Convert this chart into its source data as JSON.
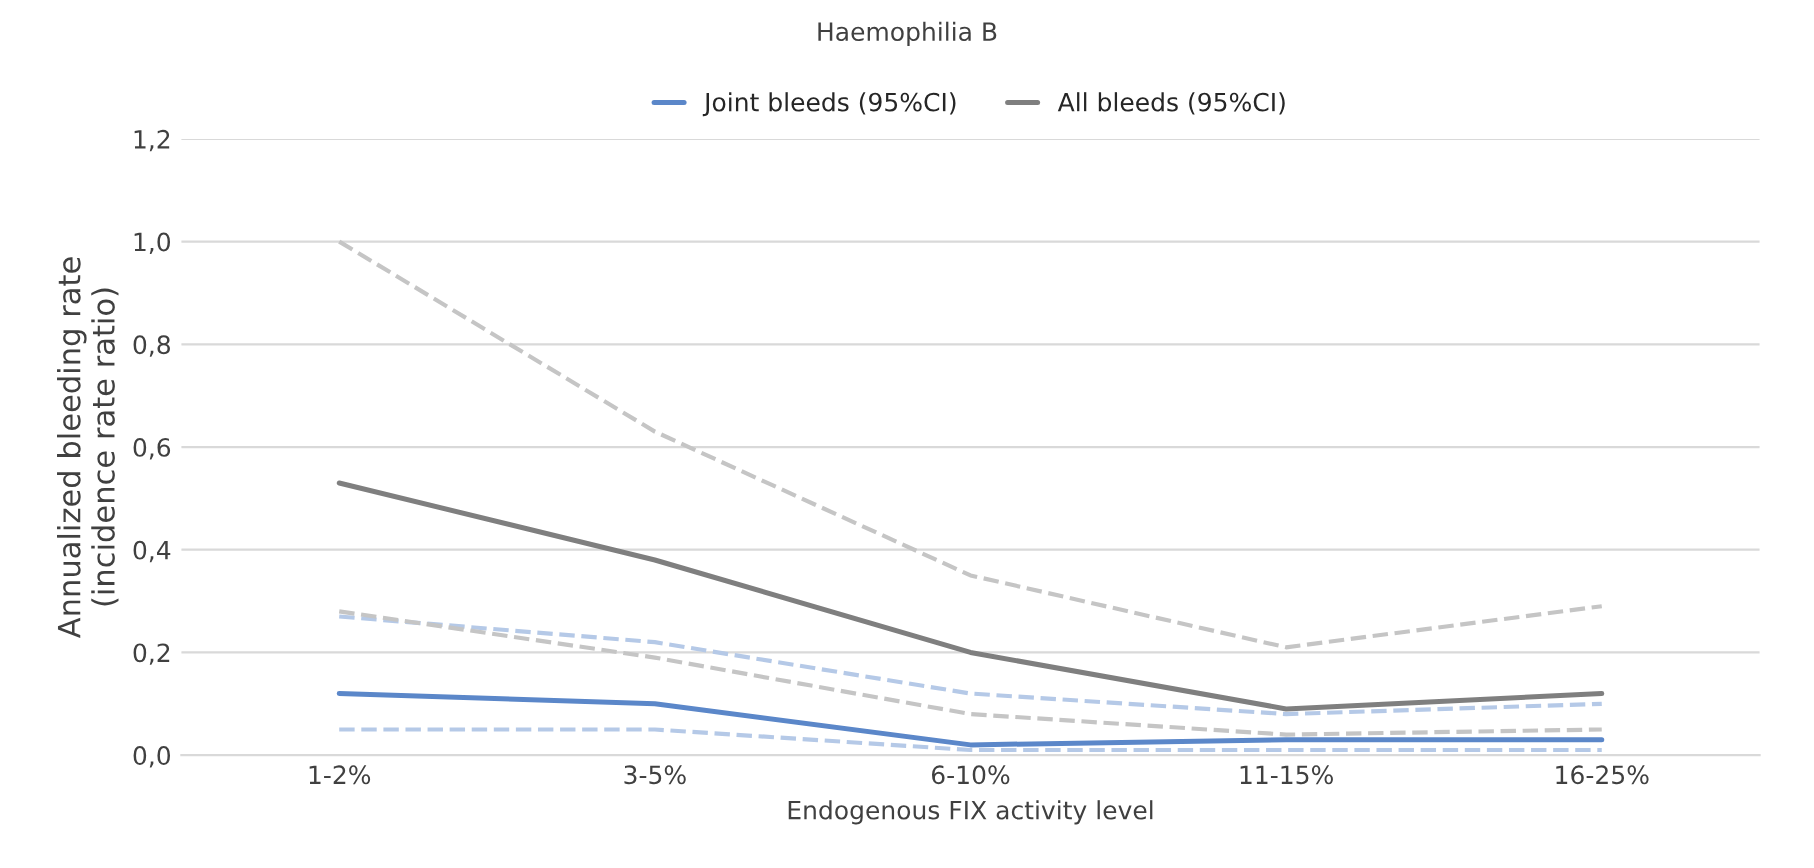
{
  "chart_data": {
    "type": "line",
    "title": "Haemophilia B",
    "xlabel": "Endogenous FIX activity level",
    "ylabel": "Annualized bleeding rate\n(incidence rate ratio)",
    "categories": [
      "1-2%",
      "3-5%",
      "6-10%",
      "11-15%",
      "16-25%"
    ],
    "series": [
      {
        "color": "#b5c9e7",
        "line_style": "dashed",
        "values": [
          0.05,
          0.05,
          0.01,
          0.01,
          0.01
        ]
      },
      {
        "color": "#b5c9e7",
        "line_style": "dashed",
        "values": [
          0.27,
          0.22,
          0.12,
          0.08,
          0.1
        ]
      },
      {
        "color": "#c5c5c5",
        "line_style": "dashed",
        "values": [
          0.28,
          0.19,
          0.08,
          0.04,
          0.05
        ]
      },
      {
        "color": "#c5c5c5",
        "line_style": "dashed",
        "values": [
          1.0,
          0.63,
          0.35,
          0.21,
          0.29
        ]
      },
      {
        "name": "Joint bleeds (95%CI)",
        "color": "#5b87c9",
        "values": [
          0.12,
          0.1,
          0.02,
          0.03,
          0.03
        ]
      },
      {
        "name": "All bleeds (95%CI)",
        "color": "#7f7f7f",
        "values": [
          0.53,
          0.38,
          0.2,
          0.09,
          0.12
        ]
      }
    ],
    "ylim": [
      0,
      1.2
    ],
    "yticks": [
      {
        "value": 0,
        "label": "0,0"
      },
      {
        "value": 0.2,
        "label": "0,2"
      },
      {
        "value": 0.4,
        "label": "0,4"
      },
      {
        "value": 0.6,
        "label": "0,6"
      },
      {
        "value": 0.8,
        "label": "0,8"
      },
      {
        "value": 1.0,
        "label": "1,0"
      },
      {
        "value": 1.2,
        "label": "1,2"
      }
    ],
    "grid": "y",
    "legend": "top",
    "line_style": "solid"
  }
}
